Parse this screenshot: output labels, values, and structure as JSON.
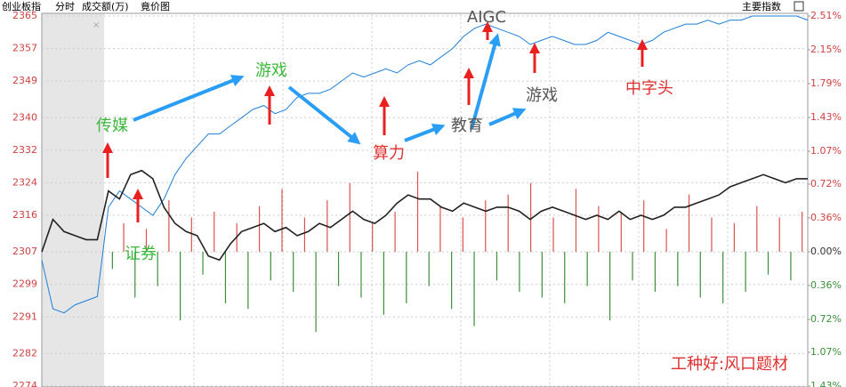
{
  "header": {
    "index": "创业板指",
    "mode": "分时",
    "volume_label": "成交额(万)",
    "auction": "竟价图",
    "button": "主要指数"
  },
  "chart_data": {
    "type": "line",
    "ylim": [
      2274,
      2365
    ],
    "yticks": [
      2365,
      2357,
      2349,
      2340,
      2332,
      2324,
      2316,
      2307,
      2299,
      2291,
      2282,
      2274
    ],
    "y2lim": [
      -1.43,
      2.51
    ],
    "y2ticks": [
      {
        "value": 2.51,
        "label": "2.51%"
      },
      {
        "value": 2.15,
        "label": "2.15%"
      },
      {
        "value": 1.79,
        "label": "1.79%"
      },
      {
        "value": 1.43,
        "label": "1.43%"
      },
      {
        "value": 1.07,
        "label": "1.07%"
      },
      {
        "value": 0.72,
        "label": "0.72%"
      },
      {
        "value": 0.36,
        "label": "0.36%"
      },
      {
        "value": 0,
        "label": "0.00%"
      },
      {
        "value": -0.36,
        "label": "0.36%"
      },
      {
        "value": -0.72,
        "label": "0.72%"
      },
      {
        "value": -1.07,
        "label": "1.07%"
      },
      {
        "value": -1.43,
        "label": "1.43%"
      }
    ],
    "series": [
      {
        "color": "#1e7fd8",
        "values": [
          2305,
          2293,
          2292,
          2294,
          2295,
          2296,
          2318,
          2322,
          2320,
          2318,
          2316,
          2320,
          2326,
          2330,
          2333,
          2336,
          2336,
          2338,
          2340,
          2342,
          2343,
          2341,
          2342,
          2345,
          2346,
          2346,
          2347,
          2349,
          2351,
          2350,
          2351,
          2352,
          2351,
          2353,
          2354,
          2353,
          2355,
          2357,
          2360,
          2362,
          2363,
          2362,
          2361,
          2360,
          2358,
          2359,
          2360,
          2359,
          2358,
          2358,
          2359,
          2361,
          2360,
          2359,
          2358,
          2359,
          2361,
          2362,
          2363,
          2363,
          2364,
          2363,
          2364,
          2364,
          2365,
          2365,
          2365,
          2365,
          2365,
          2364
        ]
      },
      {
        "color": "#222222",
        "values": [
          2307,
          2315,
          2312,
          2311,
          2310,
          2310,
          2322,
          2320,
          2326,
          2327,
          2325,
          2318,
          2314,
          2312,
          2311,
          2306,
          2305,
          2309,
          2312,
          2313,
          2314,
          2312,
          2313,
          2311,
          2312,
          2314,
          2313,
          2315,
          2317,
          2315,
          2314,
          2316,
          2319,
          2321,
          2320,
          2320,
          2318,
          2317,
          2319,
          2318,
          2317,
          2318,
          2318,
          2317,
          2315,
          2317,
          2318,
          2317,
          2316,
          2315,
          2316,
          2315,
          2317,
          2315,
          2316,
          2315,
          2316,
          2318,
          2318,
          2319,
          2320,
          2321,
          2323,
          2324,
          2325,
          2326,
          2325,
          2324,
          2325,
          2325
        ]
      }
    ],
    "volume": {
      "up_color": "#d9534f",
      "down_color": "#3a8f3a",
      "values": [
        -3,
        5,
        -8,
        4,
        -6,
        9,
        -12,
        6,
        -4,
        7,
        -9,
        5,
        -10,
        8,
        -5,
        11,
        -7,
        6,
        -14,
        9,
        -6,
        12,
        -8,
        5,
        -11,
        7,
        -9,
        14,
        -6,
        8,
        -10,
        6,
        -13,
        9,
        -5,
        10,
        -7,
        12,
        -8,
        6,
        -9,
        11,
        -6,
        8,
        -12,
        7,
        -5,
        9,
        -7,
        4,
        -6,
        10,
        -8,
        6,
        -9,
        5,
        -7,
        8,
        -4,
        6,
        -5,
        7
      ]
    },
    "annotations": [
      {
        "text": "AIGC",
        "color": "#555555"
      },
      {
        "text": "传媒",
        "color": "#3cb83c"
      },
      {
        "text": "游戏",
        "color": "#3cb83c"
      },
      {
        "text": "算力",
        "color": "#e03030"
      },
      {
        "text": "教育",
        "color": "#555555"
      },
      {
        "text": "游戏",
        "color": "#555555"
      },
      {
        "text": "中字头",
        "color": "#e03030"
      },
      {
        "text": "证券",
        "color": "#3cb83c"
      },
      {
        "text": "工种好:风口题材",
        "color": "#e03030"
      }
    ]
  }
}
